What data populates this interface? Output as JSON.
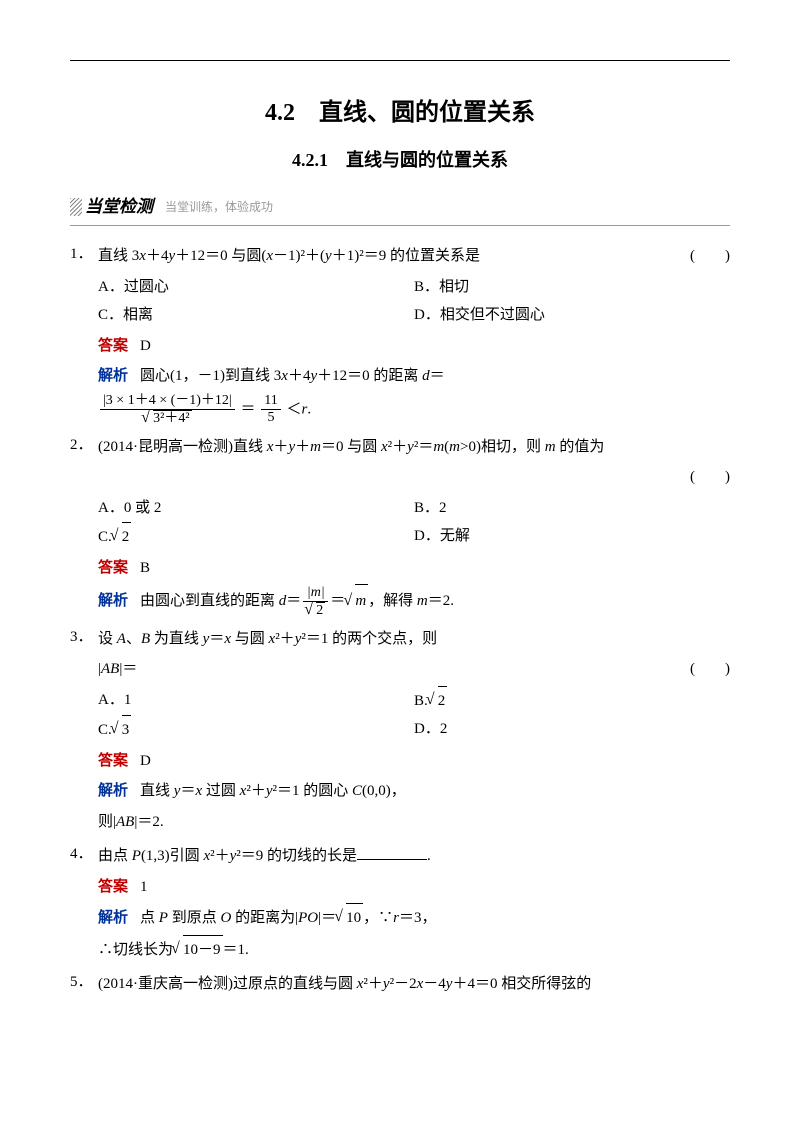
{
  "title_main": "4.2　直线、圆的位置关系",
  "title_sub": "4.2.1　直线与圆的位置关系",
  "section": {
    "label": "当堂检测",
    "tagline": "当堂训练，体验成功"
  },
  "colors": {
    "answer": "#c00000",
    "analysis": "#003399",
    "text": "#000000",
    "bg": "#ffffff"
  },
  "labels": {
    "answer": "答案",
    "analysis": "解析"
  },
  "paren": "(　　)",
  "q1": {
    "num": "1．",
    "stem_a": "直线 3",
    "stem_b": "＋4",
    "stem_c": "＋12＝0 与圆(",
    "stem_d": "－1)²＋(",
    "stem_e": "＋1)²＝9 的位置关系是",
    "A": "A．过圆心",
    "B": "B．相切",
    "C": "C．相离",
    "D": "D．相交但不过圆心",
    "ans": "D",
    "ana_a": "圆心(1，－1)到直线 3",
    "ana_b": "＋4",
    "ana_c": "＋12＝0 的距离 ",
    "ana_d": "＝",
    "frac_num": "|3 × 1＋4 × (－1)＋12|",
    "frac_den_a": "3²＋4²",
    "eq": "＝",
    "res_num": "11",
    "res_den": "5",
    "lt": "＜",
    "r": "r",
    "dot": "."
  },
  "q2": {
    "num": "2．",
    "stem_a": "(2014·昆明高一检测)直线 ",
    "stem_b": "＋",
    "stem_c": "＋",
    "stem_d": "＝0 与圆 ",
    "stem_e": "²＋",
    "stem_f": "²＝",
    "stem_g": "(",
    "stem_h": ">0)相切，则 ",
    "stem_i": " 的值为",
    "A": "A．0 或 2",
    "B": "B．2",
    "C_pre": "C.",
    "C_rad": "2",
    "D": "D．无解",
    "ans": "B",
    "ana_a": "由圆心到直线的距离 ",
    "ana_b": "＝",
    "ana_num": "|m|",
    "ana_den_rad": "2",
    "ana_c": "＝",
    "ana_rad2": "m",
    "ana_d": "，解得 ",
    "ana_e": "＝2."
  },
  "q3": {
    "num": "3．",
    "stem_a": "设 ",
    "stem_b": "、",
    "stem_c": " 为直线 ",
    "stem_d": "＝",
    "stem_e": " 与圆 ",
    "stem_f": "²＋",
    "stem_g": "²＝1 的两个交点，则",
    "stem2_a": "|",
    "stem2_b": "|＝",
    "A": "A．1",
    "B_pre": "B.",
    "B_rad": "2",
    "C_pre": "C.",
    "C_rad": "3",
    "D": "D．2",
    "ans": "D",
    "ana_a": "直线 ",
    "ana_b": "＝",
    "ana_c": " 过圆 ",
    "ana_d": "²＋",
    "ana_e": "²＝1 的圆心 ",
    "ana_f": "(0,0)，",
    "ana2_a": "则|",
    "ana2_b": "|＝2."
  },
  "q4": {
    "num": "4．",
    "stem_a": "由点 ",
    "stem_b": "(1,3)引圆 ",
    "stem_c": "²＋",
    "stem_d": "²＝9 的切线的长是",
    "ans": "1",
    "ana_a": "点 ",
    "ana_b": " 到原点 ",
    "ana_c": " 的距离为|",
    "ana_d": "|＝",
    "ana_rad1": "10",
    "ana_e": "，∵",
    "ana_f": "＝3，",
    "ana2_a": "∴切线长为",
    "ana2_rad": "10－9",
    "ana2_b": "＝1."
  },
  "q5": {
    "num": "5．",
    "stem_a": "(2014·重庆高一检测)过原点的直线与圆 ",
    "stem_b": "²＋",
    "stem_c": "²－2",
    "stem_d": "－4",
    "stem_e": "＋4＝0 相交所得弦的"
  }
}
